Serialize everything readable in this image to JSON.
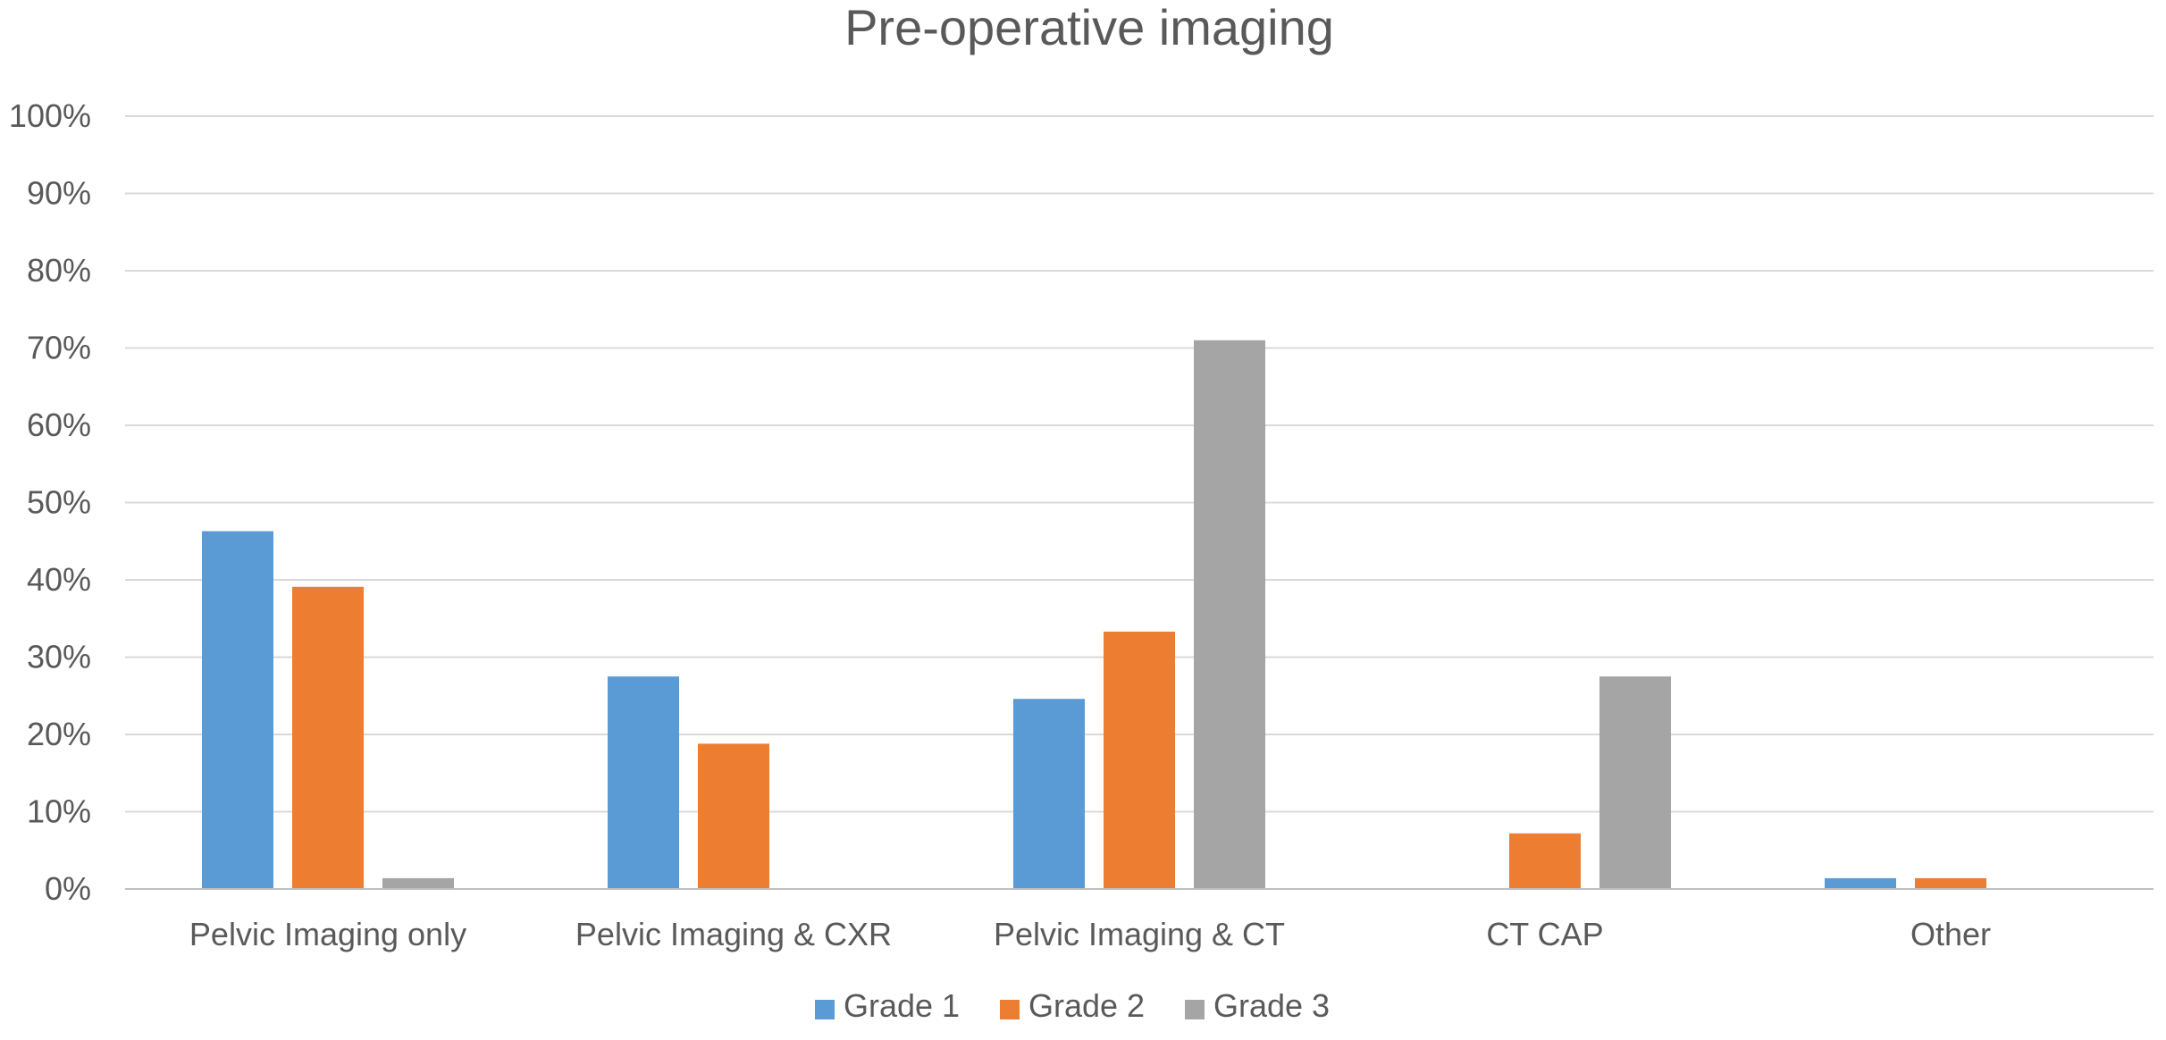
{
  "chart_data": {
    "type": "bar",
    "title": "Pre-operative imaging",
    "xlabel": "",
    "ylabel": "",
    "categories": [
      "Pelvic Imaging only",
      "Pelvic Imaging & CXR",
      "Pelvic Imaging & CT",
      "CT CAP",
      "Other"
    ],
    "series": [
      {
        "name": "Grade 1",
        "color": "#5B9BD5",
        "values": [
          46.3,
          27.5,
          24.6,
          0,
          1.4
        ]
      },
      {
        "name": "Grade 2",
        "color": "#ED7D31",
        "values": [
          39.1,
          18.8,
          33.3,
          7.2,
          1.4
        ]
      },
      {
        "name": "Grade 3",
        "color": "#A5A5A5",
        "values": [
          1.4,
          0,
          71.0,
          27.5,
          0
        ]
      }
    ],
    "ylim": [
      0,
      100
    ],
    "yticks": [
      "0%",
      "10%",
      "20%",
      "30%",
      "40%",
      "50%",
      "60%",
      "70%",
      "80%",
      "90%",
      "100%"
    ],
    "grid": true,
    "legend_position": "bottom"
  }
}
